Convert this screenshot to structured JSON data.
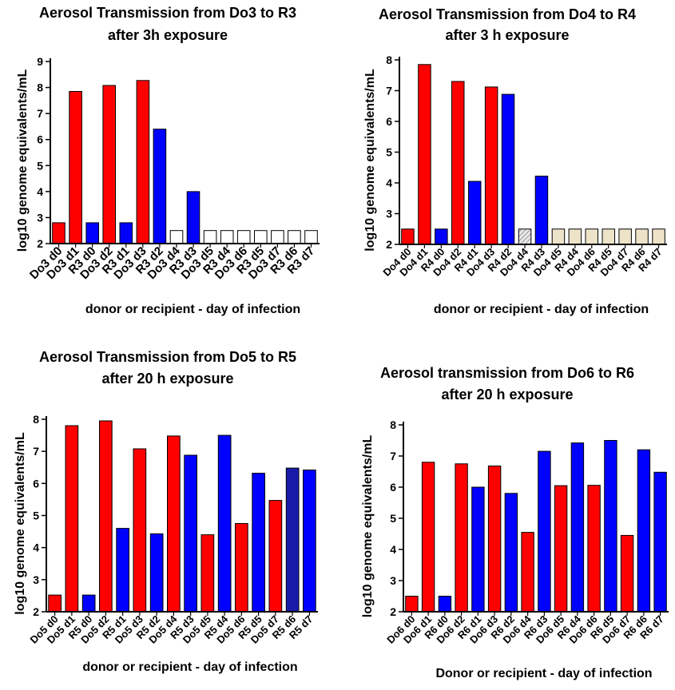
{
  "chart_data": [
    {
      "type": "bar",
      "title": [
        "Aerosol Transmission from Do3 to R3",
        "after 3h exposure"
      ],
      "xlabel": "donor or recipient - day of infection",
      "ylabel": "log10 genome equivalents/mL",
      "ylim": [
        2,
        9
      ],
      "yticks": [
        2,
        3,
        4,
        5,
        6,
        7,
        8,
        9
      ],
      "grid": false,
      "categories": [
        "Do3 d0",
        "Do3 d1",
        "R3 d0",
        "Do3 d2",
        "R3 d1",
        "Do3 d3",
        "R3 d2",
        "Do3 d4",
        "R3 d3",
        "Do3 d5",
        "R3 d4",
        "Do3 d6",
        "R3 d5",
        "Do3 d7",
        "R3 d6",
        "R3 d7"
      ],
      "values": [
        2.8,
        7.85,
        2.8,
        8.08,
        2.8,
        8.27,
        6.4,
        2.5,
        4.0,
        2.5,
        2.5,
        2.5,
        2.5,
        2.5,
        2.5,
        2.5
      ],
      "colors": [
        "#ff0000",
        "#ff0000",
        "#0000ff",
        "#ff0000",
        "#0000ff",
        "#ff0000",
        "#0000ff",
        "#ffffff",
        "#0000ff",
        "#ffffff",
        "#ffffff",
        "#ffffff",
        "#ffffff",
        "#ffffff",
        "#ffffff",
        "#ffffff"
      ],
      "patterns": [
        "",
        "",
        "",
        "",
        "",
        "",
        "",
        "",
        "",
        "",
        "",
        "",
        "",
        "",
        "",
        ""
      ]
    },
    {
      "type": "bar",
      "title": [
        "Aerosol Transmission from Do4 to R4",
        "after 3 h exposure"
      ],
      "xlabel": "donor or recipient - day of infection",
      "ylabel": "log10 genome equivalents/mL",
      "ylim": [
        2,
        8
      ],
      "yticks": [
        2,
        3,
        4,
        5,
        6,
        7,
        8
      ],
      "grid": false,
      "categories": [
        "Do4 d0",
        "Do4 d1",
        "R4 d0",
        "Do4 d2",
        "R4 d1",
        "Do4 d3",
        "R4 d2",
        "Do4 d4",
        "R4 d3",
        "Do4 d5",
        "R4 d4",
        "Do4 d6",
        "R4 d5",
        "Do4 d7",
        "R4 d6",
        "R4 d7"
      ],
      "values": [
        2.5,
        7.85,
        2.5,
        7.3,
        4.05,
        7.12,
        6.88,
        2.5,
        4.22,
        2.5,
        2.5,
        2.5,
        2.5,
        2.5,
        2.5,
        2.5
      ],
      "colors": [
        "#ff0000",
        "#ff0000",
        "#0000ff",
        "#ff0000",
        "#0000ff",
        "#ff0000",
        "#0000ff",
        "#dcdcdc",
        "#0000ff",
        "#ede3c8",
        "#ede3c8",
        "#ede3c8",
        "#ede3c8",
        "#ede3c8",
        "#ede3c8",
        "#ede3c8"
      ],
      "patterns": [
        "",
        "",
        "",
        "",
        "",
        "",
        "",
        "hatch",
        "",
        "",
        "",
        "",
        "",
        "",
        "",
        ""
      ]
    },
    {
      "type": "bar",
      "title": [
        "Aerosol Transmission from Do5 to R5",
        "after 20 h  exposure"
      ],
      "xlabel": "donor or recipient - day of infection",
      "ylabel": "log10 genome equivalents/mL",
      "ylim": [
        2,
        8
      ],
      "yticks": [
        2,
        3,
        4,
        5,
        6,
        7,
        8
      ],
      "grid": false,
      "categories": [
        "Do5 d0",
        "Do5 d1",
        "R5 d0",
        "Do5 d2",
        "R5 d1",
        "Do5 d3",
        "R5 d2",
        "Do5 d4",
        "R5 d3",
        "Do5 d5",
        "R5 d4",
        "Do5 d6",
        "R5 d5",
        "Do5 d7",
        "R5 d6",
        "R5 d7"
      ],
      "values": [
        2.52,
        7.8,
        2.52,
        7.95,
        4.6,
        7.08,
        4.43,
        7.48,
        6.88,
        4.4,
        7.5,
        4.75,
        6.32,
        5.47,
        6.48,
        6.42
      ],
      "colors": [
        "#ff0000",
        "#ff0000",
        "#0000ff",
        "#ff0000",
        "#0000ff",
        "#ff0000",
        "#0000ff",
        "#ff0000",
        "#0000ff",
        "#ff0000",
        "#0000ff",
        "#ff0000",
        "#0000ff",
        "#ff0000",
        "#1a1aa8",
        "#0000ff"
      ],
      "patterns": [
        "",
        "",
        "",
        "",
        "",
        "",
        "",
        "",
        "",
        "",
        "",
        "",
        "",
        "",
        "",
        ""
      ]
    },
    {
      "type": "bar",
      "title": [
        "Aerosol transmission from Do6 to R6",
        "after 20 h exposure"
      ],
      "xlabel": "Donor or recipient - day of infection",
      "ylabel": "log10 genome equivalents/mL",
      "ylim": [
        2,
        8
      ],
      "yticks": [
        2,
        3,
        4,
        5,
        6,
        7,
        8
      ],
      "grid": false,
      "categories": [
        "Do6 d0",
        "Do6 d1",
        "R6 d0",
        "Do6 d2",
        "R6 d1",
        "Do6 d3",
        "R6 d2",
        "Do6 d4",
        "R6 d3",
        "Do6 d5",
        "R6 d4",
        "Do6 d6",
        "R6 d5",
        "Do6 d7",
        "R6 d6",
        "R6 d7"
      ],
      "values": [
        2.5,
        6.8,
        2.5,
        6.75,
        6.0,
        6.68,
        5.8,
        4.55,
        7.15,
        6.05,
        7.42,
        6.06,
        7.5,
        4.45,
        7.2,
        6.48
      ],
      "colors": [
        "#ff0000",
        "#ff0000",
        "#0000ff",
        "#ff0000",
        "#0000ff",
        "#ff0000",
        "#0000ff",
        "#ff0000",
        "#0000ff",
        "#ff0000",
        "#0000ff",
        "#ff0000",
        "#0000ff",
        "#ff0000",
        "#0000ff",
        "#0000ff"
      ],
      "patterns": [
        "",
        "",
        "",
        "",
        "",
        "",
        "",
        "",
        "",
        "",
        "",
        "",
        "",
        "",
        "",
        ""
      ]
    }
  ]
}
